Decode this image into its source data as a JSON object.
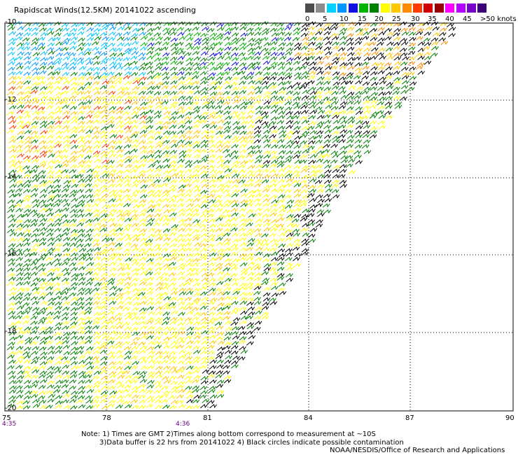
{
  "title": "Rapidscat Winds(12.5KM) 20141022 ascending",
  "legend": {
    "labels": [
      "0",
      "5",
      "10",
      "15",
      "20",
      "25",
      "30",
      "35",
      "40",
      "45",
      ">50 knots"
    ],
    "colors": [
      "#4d4d4d",
      "#8c8c8c",
      "#00d2ff",
      "#0096ff",
      "#1010e0",
      "#00b400",
      "#008000",
      "#ffff00",
      "#ffc800",
      "#ff8c00",
      "#ff3c00",
      "#d20000",
      "#960000",
      "#ff00ff",
      "#b400ff",
      "#7800c8",
      "#3c0078"
    ]
  },
  "axes": {
    "x_ticks": [
      "75",
      "78",
      "81",
      "84",
      "87",
      "90"
    ],
    "y_ticks": [
      "-10",
      "-12",
      "-14",
      "-16",
      "-18",
      "-20"
    ]
  },
  "times": {
    "left": "4:35",
    "middle": "4:36"
  },
  "notes": {
    "line1": "Note: 1) Times are GMT 2)Times along bottom correspond to measurement at ~10S",
    "line2": "3)Data buffer is 22 hrs from 20141022 4) Black circles indicate possible contamination",
    "credit": "NOAA/NESDIS/Office of Research and Applications"
  }
}
